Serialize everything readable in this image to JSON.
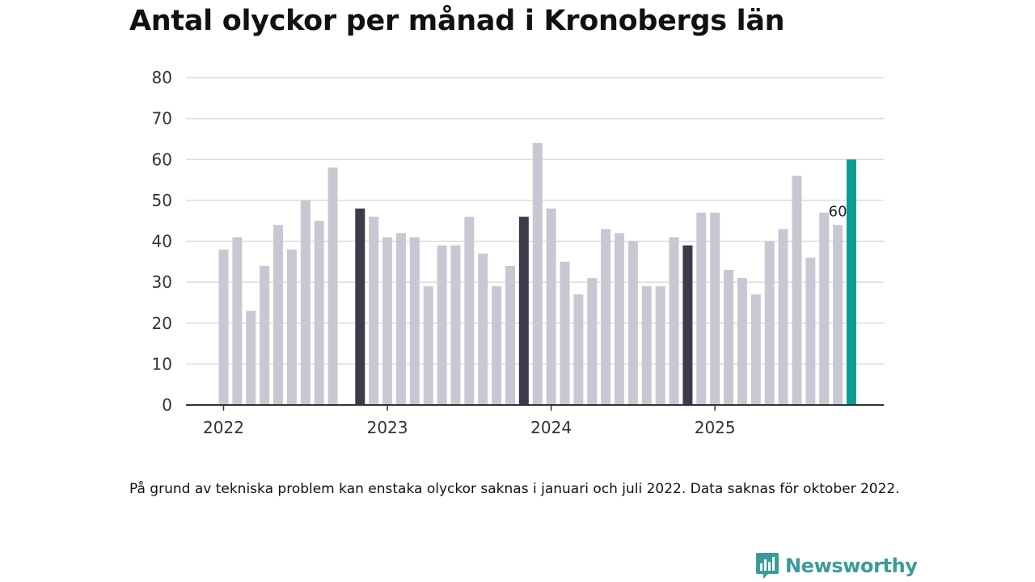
{
  "title": "Antal olyckor per månad i Kronobergs län",
  "footnote": "På grund av tekniska problem kan enstaka olyckor saknas i januari och juli 2022. Data saknas för oktober 2022.",
  "brand": {
    "name": "Newsworthy",
    "icon": "newsworthy-logo-icon",
    "color": "#3a9c98"
  },
  "colors": {
    "bar_default": "#c8c7d3",
    "bar_november": "#3c3b4a",
    "bar_latest": "#0c9e94",
    "grid": "#dcdcdc",
    "axis": "#333333"
  },
  "chart_data": {
    "type": "bar",
    "title": "Antal olyckor per månad i Kronobergs län",
    "xlabel": "",
    "ylabel": "",
    "ylim": [
      0,
      80
    ],
    "yticks": [
      0,
      10,
      20,
      30,
      40,
      50,
      60,
      70,
      80
    ],
    "grid": true,
    "xticks": [
      {
        "label": "2022",
        "month_index": 0
      },
      {
        "label": "2023",
        "month_index": 12
      },
      {
        "label": "2024",
        "month_index": 24
      },
      {
        "label": "2025",
        "month_index": 36
      }
    ],
    "annotation": {
      "month_index": 45,
      "text": "60"
    },
    "series": [
      {
        "name": "Antal olyckor",
        "values": [
          38,
          41,
          23,
          34,
          44,
          38,
          50,
          45,
          58,
          null,
          48,
          46,
          41,
          42,
          41,
          29,
          39,
          39,
          46,
          37,
          29,
          34,
          46,
          64,
          48,
          35,
          27,
          31,
          43,
          42,
          40,
          29,
          29,
          41,
          39,
          47,
          47,
          33,
          31,
          27,
          40,
          43,
          56,
          36,
          47,
          44,
          60
        ],
        "highlight_dark_indices": [
          10,
          22,
          34
        ],
        "highlight_latest_index": 46
      }
    ]
  }
}
